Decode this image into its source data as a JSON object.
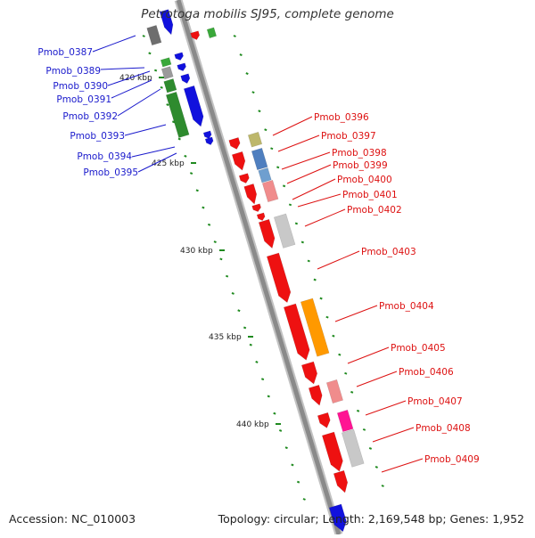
{
  "header": {
    "title": "Petrotoga mobilis SJ95, complete genome"
  },
  "footer": {
    "accession": "Accession: NC_010003",
    "topology": "Topology: circular; Length: 2,169,548 bp; Genes: 1,952"
  },
  "scale_labels": [
    "420 kbp",
    "425 kbp",
    "430 kbp",
    "435 kbp",
    "440 kbp"
  ],
  "colors": {
    "forward_label": "#1a1acc",
    "reverse_label": "#dd1111",
    "backbone": "#8a8a8a",
    "tick": "#1f8a1f"
  },
  "forward_genes": [
    {
      "label": "Pmob_0387",
      "color": "#6e6e6e"
    },
    {
      "label": "Pmob_0389",
      "color": "#9a9a9a"
    },
    {
      "label": "Pmob_0390",
      "color": "#3aa83a"
    },
    {
      "label": "Pmob_0391",
      "color": "#2e8b2e"
    },
    {
      "label": "Pmob_0392",
      "color": "#2e8b2e"
    },
    {
      "label": "Pmob_0393",
      "color": "#1111dd"
    },
    {
      "label": "Pmob_0394",
      "color": "#1111dd"
    },
    {
      "label": "Pmob_0395",
      "color": "#1111dd"
    }
  ],
  "reverse_genes": [
    {
      "label": "Pmob_0396",
      "color": "#bdb76b"
    },
    {
      "label": "Pmob_0397",
      "color": "#4f7fbf"
    },
    {
      "label": "Pmob_0398",
      "color": "#6f9fcf"
    },
    {
      "label": "Pmob_0399",
      "color": "#f08c8c"
    },
    {
      "label": "Pmob_0400",
      "color": "#ee1111"
    },
    {
      "label": "Pmob_0401",
      "color": "#ee1111"
    },
    {
      "label": "Pmob_0402",
      "color": "#c8c8c8"
    },
    {
      "label": "Pmob_0403",
      "color": "#ee1111"
    },
    {
      "label": "Pmob_0404",
      "color": "#ff9900"
    },
    {
      "label": "Pmob_0405",
      "color": "#ee1111"
    },
    {
      "label": "Pmob_0406",
      "color": "#f08c8c"
    },
    {
      "label": "Pmob_0407",
      "color": "#ff1493"
    },
    {
      "label": "Pmob_0408",
      "color": "#c8c8c8"
    },
    {
      "label": "Pmob_0409",
      "color": "#ee1111"
    }
  ]
}
